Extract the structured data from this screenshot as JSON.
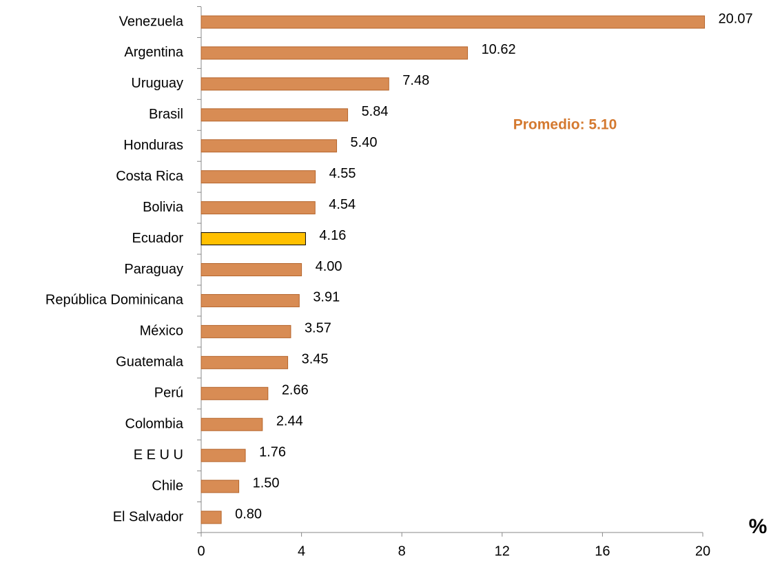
{
  "chart_data": {
    "type": "bar",
    "orientation": "horizontal",
    "categories": [
      "Venezuela",
      "Argentina",
      "Uruguay",
      "Brasil",
      "Honduras",
      "Costa Rica",
      "Bolivia",
      "Ecuador",
      "Paraguay",
      "República Dominicana",
      "México",
      "Guatemala",
      "Perú",
      "Colombia",
      "E E U U",
      "Chile",
      "El Salvador"
    ],
    "values": [
      20.07,
      10.62,
      7.48,
      5.84,
      5.4,
      4.55,
      4.54,
      4.16,
      4.0,
      3.91,
      3.57,
      3.45,
      2.66,
      2.44,
      1.76,
      1.5,
      0.8
    ],
    "value_labels": [
      "20.07",
      "10.62",
      "7.48",
      "5.84",
      "5.40",
      "4.55",
      "4.54",
      "4.16",
      "4.00",
      "3.91",
      "3.57",
      "3.45",
      "2.66",
      "2.44",
      "1.76",
      "1.50",
      "0.80"
    ],
    "colors": [
      "#d88c54",
      "#d88c54",
      "#d88c54",
      "#d88c54",
      "#d88c54",
      "#d88c54",
      "#d88c54",
      "#ffc000",
      "#d88c54",
      "#d88c54",
      "#d88c54",
      "#d88c54",
      "#d88c54",
      "#d88c54",
      "#d88c54",
      "#d88c54",
      "#d88c54"
    ],
    "xlim": [
      0,
      20
    ],
    "xticks": [
      0,
      4,
      8,
      12,
      16,
      20
    ],
    "annotation": "Promedio: 5.10",
    "annotation_color": "#d4792f",
    "xlabel": "%"
  }
}
